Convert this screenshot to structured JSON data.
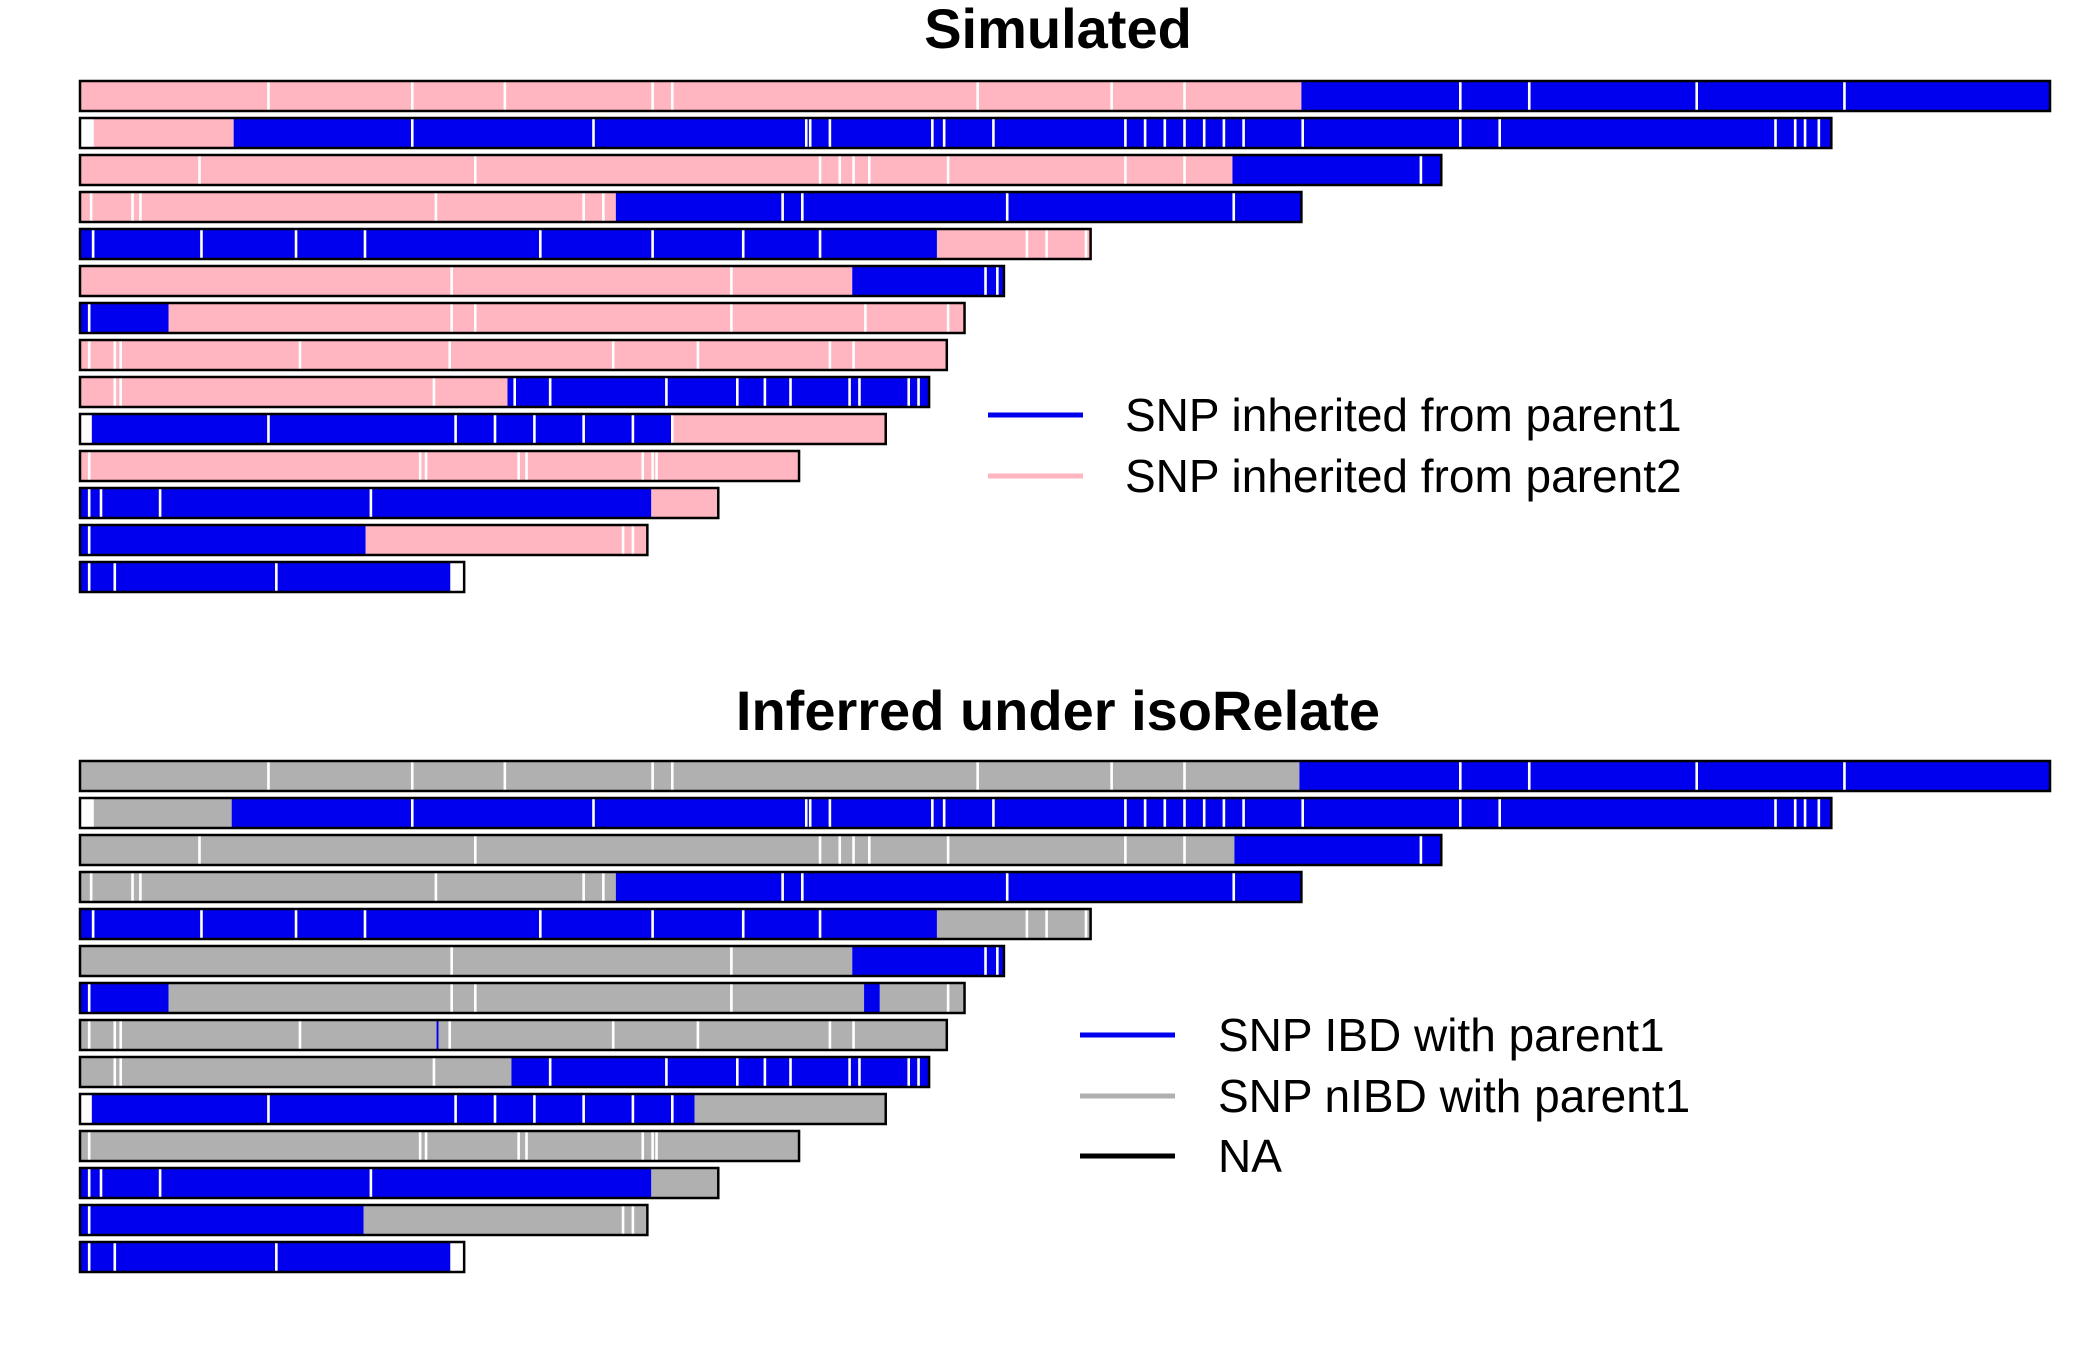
{
  "chart_data": [
    {
      "type": "chromosome-painting",
      "title": "Simulated",
      "state_colors": {
        "parent1": "#0000EE",
        "parent2": "#FFB6C1",
        "missing": "#FFFFFF"
      },
      "legend": [
        {
          "label": "SNP inherited from parent1",
          "color": "#0000EE"
        },
        {
          "label": "SNP inherited from parent2",
          "color": "#FFB6C1"
        }
      ],
      "chromosomes": [
        {
          "length": 1.0,
          "segments": [
            {
              "start": 0.0,
              "end": 0.62,
              "state": "parent2"
            },
            {
              "start": 0.62,
              "end": 1.0,
              "state": "parent1"
            }
          ],
          "gaps": [
            0.095,
            0.168,
            0.215,
            0.29,
            0.3,
            0.455,
            0.523,
            0.56,
            0.7,
            0.735,
            0.82,
            0.895
          ]
        },
        {
          "length": 0.889,
          "segments": [
            {
              "start": 0.0,
              "end": 0.007,
              "state": "missing"
            },
            {
              "start": 0.007,
              "end": 0.078,
              "state": "parent2"
            },
            {
              "start": 0.078,
              "end": 0.889,
              "state": "parent1"
            }
          ],
          "gaps": [
            0.168,
            0.26,
            0.368,
            0.37,
            0.38,
            0.432,
            0.463,
            0.438,
            0.53,
            0.54,
            0.55,
            0.56,
            0.57,
            0.58,
            0.59,
            0.62,
            0.7,
            0.72,
            0.86,
            0.87,
            0.875,
            0.882
          ]
        },
        {
          "length": 0.691,
          "segments": [
            {
              "start": 0.0,
              "end": 0.585,
              "state": "parent2"
            },
            {
              "start": 0.585,
              "end": 0.691,
              "state": "parent1"
            }
          ],
          "gaps": [
            0.06,
            0.2,
            0.375,
            0.385,
            0.392,
            0.4,
            0.44,
            0.53,
            0.56,
            0.68
          ]
        },
        {
          "length": 0.62,
          "segments": [
            {
              "start": 0.0,
              "end": 0.272,
              "state": "parent2"
            },
            {
              "start": 0.272,
              "end": 0.62,
              "state": "parent1"
            }
          ],
          "gaps": [
            0.005,
            0.026,
            0.03,
            0.18,
            0.255,
            0.265,
            0.356,
            0.366,
            0.47,
            0.585
          ]
        },
        {
          "length": 0.513,
          "segments": [
            {
              "start": 0.0,
              "end": 0.435,
              "state": "parent1"
            },
            {
              "start": 0.435,
              "end": 0.513,
              "state": "parent2"
            }
          ],
          "gaps": [
            0.006,
            0.061,
            0.109,
            0.144,
            0.233,
            0.29,
            0.336,
            0.375,
            0.48,
            0.49,
            0.51
          ]
        },
        {
          "length": 0.469,
          "segments": [
            {
              "start": 0.0,
              "end": 0.392,
              "state": "parent2"
            },
            {
              "start": 0.392,
              "end": 0.469,
              "state": "parent1"
            }
          ],
          "gaps": [
            0.188,
            0.33,
            0.459,
            0.465
          ]
        },
        {
          "length": 0.449,
          "segments": [
            {
              "start": 0.0,
              "end": 0.045,
              "state": "parent1"
            },
            {
              "start": 0.045,
              "end": 0.449,
              "state": "parent2"
            }
          ],
          "gaps": [
            0.004,
            0.188,
            0.2,
            0.33,
            0.398,
            0.44
          ]
        },
        {
          "length": 0.44,
          "segments": [
            {
              "start": 0.0,
              "end": 0.44,
              "state": "parent2"
            }
          ],
          "gaps": [
            0.004,
            0.017,
            0.02,
            0.111,
            0.187,
            0.27,
            0.313,
            0.38,
            0.392
          ]
        },
        {
          "length": 0.431,
          "segments": [
            {
              "start": 0.0,
              "end": 0.217,
              "state": "parent2"
            },
            {
              "start": 0.217,
              "end": 0.431,
              "state": "parent1"
            }
          ],
          "gaps": [
            0.017,
            0.02,
            0.179,
            0.22,
            0.238,
            0.297,
            0.333,
            0.347,
            0.36,
            0.39,
            0.395,
            0.42,
            0.425
          ]
        },
        {
          "length": 0.409,
          "segments": [
            {
              "start": 0.0,
              "end": 0.006,
              "state": "missing"
            },
            {
              "start": 0.006,
              "end": 0.3,
              "state": "parent1"
            },
            {
              "start": 0.3,
              "end": 0.409,
              "state": "parent2"
            }
          ],
          "gaps": [
            0.095,
            0.19,
            0.21,
            0.23,
            0.255,
            0.28,
            0.3
          ]
        },
        {
          "length": 0.365,
          "segments": [
            {
              "start": 0.0,
              "end": 0.365,
              "state": "parent2"
            }
          ],
          "gaps": [
            0.004,
            0.172,
            0.175,
            0.222,
            0.226,
            0.285,
            0.29,
            0.292
          ]
        },
        {
          "length": 0.324,
          "segments": [
            {
              "start": 0.0,
              "end": 0.29,
              "state": "parent1"
            },
            {
              "start": 0.29,
              "end": 0.324,
              "state": "parent2"
            }
          ],
          "gaps": [
            0.004,
            0.01,
            0.04,
            0.147
          ]
        },
        {
          "length": 0.288,
          "segments": [
            {
              "start": 0.0,
              "end": 0.145,
              "state": "parent1"
            },
            {
              "start": 0.145,
              "end": 0.288,
              "state": "parent2"
            }
          ],
          "gaps": [
            0.004,
            0.275,
            0.28
          ]
        },
        {
          "length": 0.195,
          "segments": [
            {
              "start": 0.0,
              "end": 0.188,
              "state": "parent1"
            },
            {
              "start": 0.188,
              "end": 0.195,
              "state": "missing"
            }
          ],
          "gaps": [
            0.004,
            0.017,
            0.099
          ]
        }
      ]
    },
    {
      "type": "chromosome-painting",
      "title": "Inferred under isoRelate",
      "state_colors": {
        "ibd": "#0000EE",
        "nibd": "#B0B0B0",
        "na": "#000000",
        "missing": "#FFFFFF"
      },
      "legend": [
        {
          "label": "SNP IBD with parent1",
          "color": "#0000EE"
        },
        {
          "label": "SNP nIBD with parent1",
          "color": "#B0B0B0"
        },
        {
          "label": "NA",
          "color": "#000000"
        }
      ],
      "chromosomes": [
        {
          "length": 1.0,
          "segments": [
            {
              "start": 0.0,
              "end": 0.619,
              "state": "nibd"
            },
            {
              "start": 0.619,
              "end": 1.0,
              "state": "ibd"
            }
          ],
          "gaps": [
            0.095,
            0.168,
            0.215,
            0.29,
            0.3,
            0.455,
            0.523,
            0.56,
            0.7,
            0.735,
            0.82,
            0.895
          ]
        },
        {
          "length": 0.889,
          "segments": [
            {
              "start": 0.0,
              "end": 0.007,
              "state": "missing"
            },
            {
              "start": 0.007,
              "end": 0.077,
              "state": "nibd"
            },
            {
              "start": 0.077,
              "end": 0.889,
              "state": "ibd"
            }
          ],
          "gaps": [
            0.168,
            0.26,
            0.368,
            0.37,
            0.38,
            0.432,
            0.463,
            0.438,
            0.53,
            0.54,
            0.55,
            0.56,
            0.57,
            0.58,
            0.59,
            0.62,
            0.7,
            0.72,
            0.86,
            0.87,
            0.875,
            0.882
          ]
        },
        {
          "length": 0.691,
          "segments": [
            {
              "start": 0.0,
              "end": 0.586,
              "state": "nibd"
            },
            {
              "start": 0.586,
              "end": 0.691,
              "state": "ibd"
            }
          ],
          "gaps": [
            0.06,
            0.2,
            0.375,
            0.385,
            0.392,
            0.4,
            0.44,
            0.53,
            0.56,
            0.68
          ]
        },
        {
          "length": 0.62,
          "segments": [
            {
              "start": 0.0,
              "end": 0.272,
              "state": "nibd"
            },
            {
              "start": 0.272,
              "end": 0.62,
              "state": "ibd"
            }
          ],
          "gaps": [
            0.005,
            0.026,
            0.03,
            0.18,
            0.255,
            0.265,
            0.356,
            0.366,
            0.47,
            0.585
          ]
        },
        {
          "length": 0.513,
          "segments": [
            {
              "start": 0.0,
              "end": 0.435,
              "state": "ibd"
            },
            {
              "start": 0.435,
              "end": 0.513,
              "state": "nibd"
            }
          ],
          "gaps": [
            0.006,
            0.061,
            0.109,
            0.144,
            0.233,
            0.29,
            0.336,
            0.375,
            0.48,
            0.49,
            0.51
          ]
        },
        {
          "length": 0.469,
          "segments": [
            {
              "start": 0.0,
              "end": 0.392,
              "state": "nibd"
            },
            {
              "start": 0.392,
              "end": 0.469,
              "state": "ibd"
            }
          ],
          "gaps": [
            0.188,
            0.33,
            0.459,
            0.465
          ]
        },
        {
          "length": 0.449,
          "segments": [
            {
              "start": 0.0,
              "end": 0.045,
              "state": "ibd"
            },
            {
              "start": 0.045,
              "end": 0.398,
              "state": "nibd"
            },
            {
              "start": 0.398,
              "end": 0.406,
              "state": "ibd"
            },
            {
              "start": 0.406,
              "end": 0.449,
              "state": "nibd"
            }
          ],
          "gaps": [
            0.004,
            0.188,
            0.2,
            0.33,
            0.44
          ]
        },
        {
          "length": 0.44,
          "segments": [
            {
              "start": 0.0,
              "end": 0.181,
              "state": "nibd"
            },
            {
              "start": 0.181,
              "end": 0.182,
              "state": "ibd"
            },
            {
              "start": 0.182,
              "end": 0.44,
              "state": "nibd"
            }
          ],
          "gaps": [
            0.004,
            0.017,
            0.02,
            0.111,
            0.187,
            0.27,
            0.313,
            0.38,
            0.392
          ]
        },
        {
          "length": 0.431,
          "segments": [
            {
              "start": 0.0,
              "end": 0.219,
              "state": "nibd"
            },
            {
              "start": 0.219,
              "end": 0.431,
              "state": "ibd"
            }
          ],
          "gaps": [
            0.017,
            0.02,
            0.179,
            0.238,
            0.297,
            0.333,
            0.347,
            0.36,
            0.39,
            0.395,
            0.42,
            0.425
          ]
        },
        {
          "length": 0.409,
          "segments": [
            {
              "start": 0.0,
              "end": 0.006,
              "state": "missing"
            },
            {
              "start": 0.006,
              "end": 0.312,
              "state": "ibd"
            },
            {
              "start": 0.312,
              "end": 0.409,
              "state": "nibd"
            }
          ],
          "gaps": [
            0.095,
            0.19,
            0.21,
            0.23,
            0.255,
            0.28,
            0.3
          ]
        },
        {
          "length": 0.365,
          "segments": [
            {
              "start": 0.0,
              "end": 0.365,
              "state": "nibd"
            }
          ],
          "gaps": [
            0.004,
            0.172,
            0.175,
            0.222,
            0.226,
            0.285,
            0.29,
            0.292
          ]
        },
        {
          "length": 0.324,
          "segments": [
            {
              "start": 0.0,
              "end": 0.29,
              "state": "ibd"
            },
            {
              "start": 0.29,
              "end": 0.324,
              "state": "nibd"
            }
          ],
          "gaps": [
            0.004,
            0.01,
            0.04,
            0.147
          ]
        },
        {
          "length": 0.288,
          "segments": [
            {
              "start": 0.0,
              "end": 0.144,
              "state": "ibd"
            },
            {
              "start": 0.144,
              "end": 0.288,
              "state": "nibd"
            }
          ],
          "gaps": [
            0.004,
            0.275,
            0.28
          ]
        },
        {
          "length": 0.195,
          "segments": [
            {
              "start": 0.0,
              "end": 0.188,
              "state": "ibd"
            },
            {
              "start": 0.188,
              "end": 0.195,
              "state": "missing"
            }
          ],
          "gaps": [
            0.004,
            0.017,
            0.099
          ]
        }
      ]
    }
  ]
}
